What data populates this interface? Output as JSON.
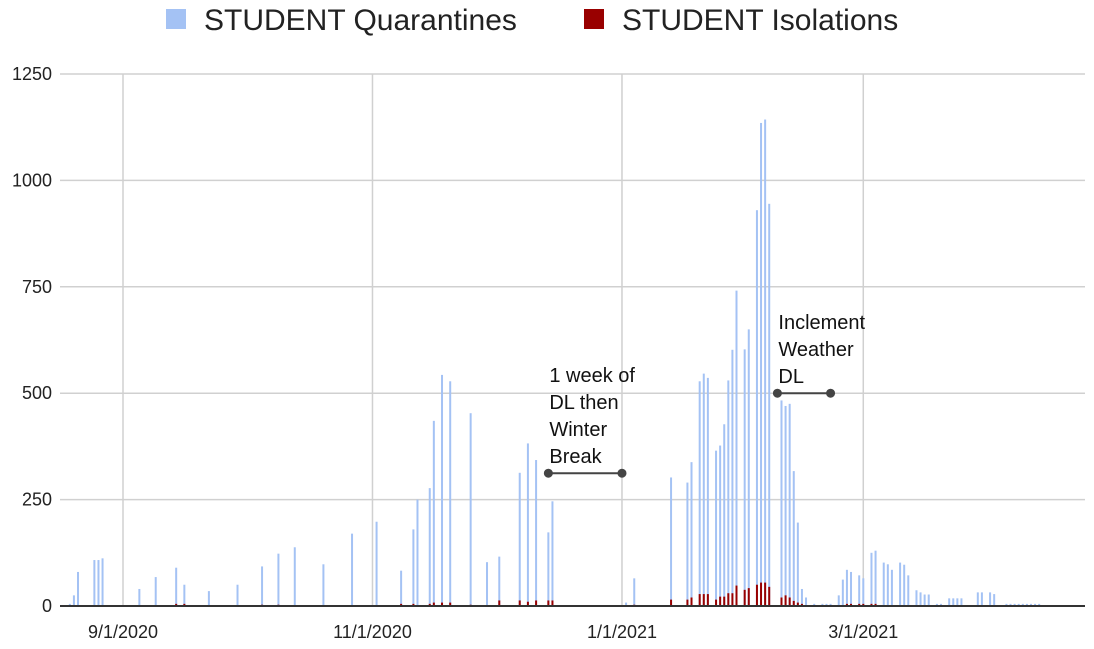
{
  "chart_data": {
    "type": "bar",
    "stacked": true,
    "title": "",
    "xlabel": "",
    "ylabel": "",
    "ylim": [
      0,
      1250
    ],
    "yticks": [
      0,
      250,
      500,
      750,
      1000,
      1250
    ],
    "xticks": [
      {
        "label": "9/1/2020",
        "date": "2020-09-01"
      },
      {
        "label": "11/1/2020",
        "date": "2020-11-01"
      },
      {
        "label": "1/1/2021",
        "date": "2021-01-01"
      },
      {
        "label": "3/1/2021",
        "date": "2021-03-01"
      }
    ],
    "grid": true,
    "legend_position": "top",
    "colors": {
      "quarantines": "#a4c2f4",
      "isolations": "#990000"
    },
    "series": [
      {
        "name": "STUDENT Quarantines",
        "key": "q"
      },
      {
        "name": "STUDENT Isolations",
        "key": "i"
      }
    ],
    "points": [
      {
        "date": "2020-08-19",
        "q": 5,
        "i": 0
      },
      {
        "date": "2020-08-20",
        "q": 25,
        "i": 0
      },
      {
        "date": "2020-08-21",
        "q": 80,
        "i": 0
      },
      {
        "date": "2020-08-25",
        "q": 108,
        "i": 0
      },
      {
        "date": "2020-08-26",
        "q": 108,
        "i": 0
      },
      {
        "date": "2020-08-27",
        "q": 112,
        "i": 0
      },
      {
        "date": "2020-09-05",
        "q": 40,
        "i": 0
      },
      {
        "date": "2020-09-09",
        "q": 68,
        "i": 0
      },
      {
        "date": "2020-09-14",
        "q": 85,
        "i": 5
      },
      {
        "date": "2020-09-16",
        "q": 45,
        "i": 5
      },
      {
        "date": "2020-09-22",
        "q": 35,
        "i": 0
      },
      {
        "date": "2020-09-29",
        "q": 50,
        "i": 0
      },
      {
        "date": "2020-10-05",
        "q": 90,
        "i": 3
      },
      {
        "date": "2020-10-09",
        "q": 120,
        "i": 3
      },
      {
        "date": "2020-10-13",
        "q": 138,
        "i": 0
      },
      {
        "date": "2020-10-20",
        "q": 98,
        "i": 0
      },
      {
        "date": "2020-10-27",
        "q": 170,
        "i": 0
      },
      {
        "date": "2020-11-02",
        "q": 198,
        "i": 0
      },
      {
        "date": "2020-11-08",
        "q": 78,
        "i": 5
      },
      {
        "date": "2020-11-11",
        "q": 175,
        "i": 5
      },
      {
        "date": "2020-11-12",
        "q": 250,
        "i": 0
      },
      {
        "date": "2020-11-15",
        "q": 272,
        "i": 5
      },
      {
        "date": "2020-11-16",
        "q": 427,
        "i": 8
      },
      {
        "date": "2020-11-18",
        "q": 535,
        "i": 8
      },
      {
        "date": "2020-11-20",
        "q": 520,
        "i": 8
      },
      {
        "date": "2020-11-25",
        "q": 450,
        "i": 3
      },
      {
        "date": "2020-11-29",
        "q": 103,
        "i": 0
      },
      {
        "date": "2020-12-02",
        "q": 103,
        "i": 13
      },
      {
        "date": "2020-12-07",
        "q": 300,
        "i": 13
      },
      {
        "date": "2020-12-09",
        "q": 372,
        "i": 10
      },
      {
        "date": "2020-12-11",
        "q": 330,
        "i": 13
      },
      {
        "date": "2020-12-14",
        "q": 160,
        "i": 13
      },
      {
        "date": "2020-12-15",
        "q": 233,
        "i": 13
      },
      {
        "date": "2021-01-02",
        "q": 8,
        "i": 0
      },
      {
        "date": "2021-01-04",
        "q": 62,
        "i": 3
      },
      {
        "date": "2021-01-13",
        "q": 287,
        "i": 15
      },
      {
        "date": "2021-01-17",
        "q": 275,
        "i": 15
      },
      {
        "date": "2021-01-18",
        "q": 318,
        "i": 20
      },
      {
        "date": "2021-01-20",
        "q": 500,
        "i": 28
      },
      {
        "date": "2021-01-21",
        "q": 518,
        "i": 28
      },
      {
        "date": "2021-01-22",
        "q": 508,
        "i": 28
      },
      {
        "date": "2021-01-24",
        "q": 350,
        "i": 15
      },
      {
        "date": "2021-01-25",
        "q": 355,
        "i": 22
      },
      {
        "date": "2021-01-26",
        "q": 405,
        "i": 22
      },
      {
        "date": "2021-01-27",
        "q": 500,
        "i": 30
      },
      {
        "date": "2021-01-28",
        "q": 572,
        "i": 30
      },
      {
        "date": "2021-01-29",
        "q": 693,
        "i": 48
      },
      {
        "date": "2021-01-31",
        "q": 565,
        "i": 38
      },
      {
        "date": "2021-02-01",
        "q": 608,
        "i": 42
      },
      {
        "date": "2021-02-03",
        "q": 880,
        "i": 50
      },
      {
        "date": "2021-02-04",
        "q": 1080,
        "i": 55
      },
      {
        "date": "2021-02-05",
        "q": 1088,
        "i": 55
      },
      {
        "date": "2021-02-06",
        "q": 900,
        "i": 45
      },
      {
        "date": "2021-02-09",
        "q": 463,
        "i": 20
      },
      {
        "date": "2021-02-10",
        "q": 445,
        "i": 25
      },
      {
        "date": "2021-02-11",
        "q": 455,
        "i": 20
      },
      {
        "date": "2021-02-12",
        "q": 305,
        "i": 12
      },
      {
        "date": "2021-02-13",
        "q": 188,
        "i": 8
      },
      {
        "date": "2021-02-14",
        "q": 35,
        "i": 5
      },
      {
        "date": "2021-02-15",
        "q": 20,
        "i": 0
      },
      {
        "date": "2021-02-17",
        "q": 5,
        "i": 0
      },
      {
        "date": "2021-02-19",
        "q": 5,
        "i": 0
      },
      {
        "date": "2021-02-20",
        "q": 5,
        "i": 0
      },
      {
        "date": "2021-02-21",
        "q": 5,
        "i": 0
      },
      {
        "date": "2021-02-23",
        "q": 25,
        "i": 0
      },
      {
        "date": "2021-02-24",
        "q": 62,
        "i": 0
      },
      {
        "date": "2021-02-25",
        "q": 80,
        "i": 5
      },
      {
        "date": "2021-02-26",
        "q": 75,
        "i": 5
      },
      {
        "date": "2021-02-28",
        "q": 67,
        "i": 5
      },
      {
        "date": "2021-03-01",
        "q": 60,
        "i": 5
      },
      {
        "date": "2021-03-03",
        "q": 120,
        "i": 5
      },
      {
        "date": "2021-03-04",
        "q": 125,
        "i": 5
      },
      {
        "date": "2021-03-06",
        "q": 102,
        "i": 0
      },
      {
        "date": "2021-03-07",
        "q": 98,
        "i": 0
      },
      {
        "date": "2021-03-08",
        "q": 85,
        "i": 0
      },
      {
        "date": "2021-03-10",
        "q": 102,
        "i": 0
      },
      {
        "date": "2021-03-11",
        "q": 97,
        "i": 0
      },
      {
        "date": "2021-03-12",
        "q": 72,
        "i": 0
      },
      {
        "date": "2021-03-14",
        "q": 37,
        "i": 0
      },
      {
        "date": "2021-03-15",
        "q": 32,
        "i": 0
      },
      {
        "date": "2021-03-16",
        "q": 27,
        "i": 0
      },
      {
        "date": "2021-03-17",
        "q": 27,
        "i": 0
      },
      {
        "date": "2021-03-19",
        "q": 5,
        "i": 0
      },
      {
        "date": "2021-03-20",
        "q": 5,
        "i": 0
      },
      {
        "date": "2021-03-22",
        "q": 18,
        "i": 0
      },
      {
        "date": "2021-03-23",
        "q": 18,
        "i": 0
      },
      {
        "date": "2021-03-24",
        "q": 18,
        "i": 0
      },
      {
        "date": "2021-03-25",
        "q": 18,
        "i": 0
      },
      {
        "date": "2021-03-29",
        "q": 32,
        "i": 0
      },
      {
        "date": "2021-03-30",
        "q": 32,
        "i": 0
      },
      {
        "date": "2021-04-01",
        "q": 32,
        "i": 0
      },
      {
        "date": "2021-04-02",
        "q": 28,
        "i": 0
      },
      {
        "date": "2021-04-05",
        "q": 5,
        "i": 0
      },
      {
        "date": "2021-04-06",
        "q": 5,
        "i": 0
      },
      {
        "date": "2021-04-07",
        "q": 5,
        "i": 0
      },
      {
        "date": "2021-04-08",
        "q": 5,
        "i": 0
      },
      {
        "date": "2021-04-09",
        "q": 5,
        "i": 0
      },
      {
        "date": "2021-04-10",
        "q": 5,
        "i": 0
      },
      {
        "date": "2021-04-11",
        "q": 5,
        "i": 0
      },
      {
        "date": "2021-04-12",
        "q": 5,
        "i": 0
      },
      {
        "date": "2021-04-13",
        "q": 5,
        "i": 0
      }
    ],
    "annotations": [
      {
        "lines": [
          "1 week of",
          "DL then",
          "Winter",
          "Break"
        ],
        "start": "2020-12-14",
        "end": "2021-01-01",
        "y": 312
      },
      {
        "lines": [
          "Inclement",
          "Weather",
          "DL"
        ],
        "start": "2021-02-08",
        "end": "2021-02-21",
        "y": 500
      }
    ]
  }
}
